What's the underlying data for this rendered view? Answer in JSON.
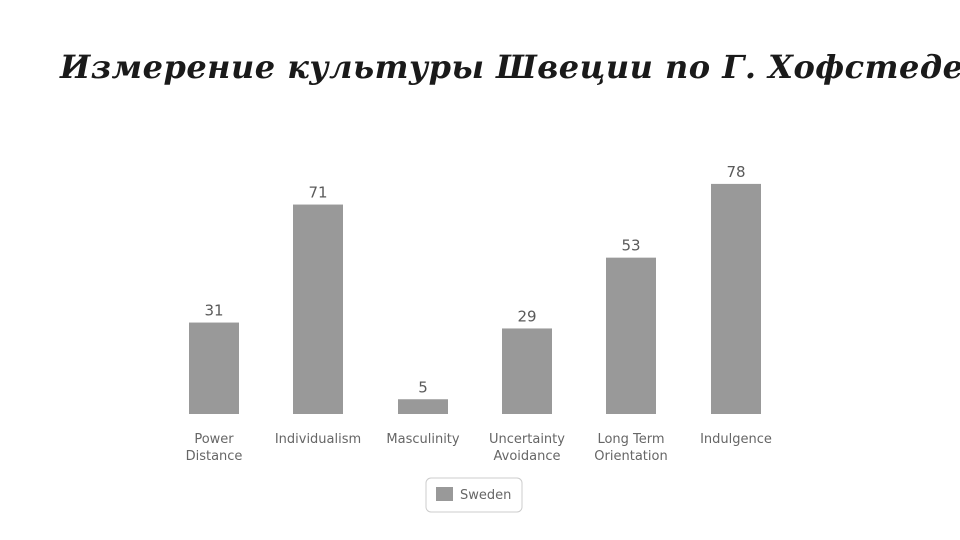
{
  "slide": {
    "title": "Измерение культуры Швеции по Г. Хофстеде"
  },
  "chart_data": {
    "type": "bar",
    "categories": [
      [
        "Power",
        "Distance"
      ],
      [
        "Individualism"
      ],
      [
        "Masculinity"
      ],
      [
        "Uncertainty",
        "Avoidance"
      ],
      [
        "Long Term",
        "Orientation"
      ],
      [
        "Indulgence"
      ]
    ],
    "series": [
      {
        "name": "Sweden",
        "values": [
          31,
          71,
          5,
          29,
          53,
          78
        ],
        "color": "#999999"
      }
    ],
    "ylim": [
      0,
      100
    ],
    "grid": false,
    "data_labels": true,
    "legend": "bottom-center"
  }
}
